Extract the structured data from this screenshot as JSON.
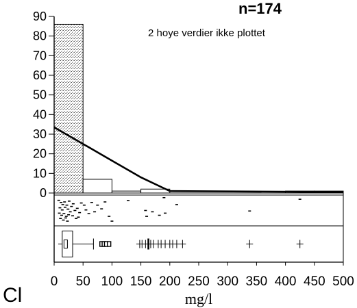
{
  "chart_data": {
    "type": "bar",
    "n_label": "n=174",
    "note": "2 hoye verdier ikke plottet",
    "element_label": "Cl",
    "xlabel": "mg/l",
    "xlim": [
      0,
      500
    ],
    "ylim": [
      0,
      90
    ],
    "x_ticks": [
      "0",
      "50",
      "100",
      "150",
      "200",
      "250",
      "300",
      "350",
      "400",
      "450",
      "500"
    ],
    "y_ticks": [
      "0",
      "10",
      "20",
      "30",
      "40",
      "50",
      "60",
      "70",
      "80",
      "90"
    ],
    "histogram": {
      "bin_width": 50,
      "bins": [
        {
          "from": 0,
          "to": 50,
          "count": 86
        },
        {
          "from": 50,
          "to": 100,
          "count": 7
        },
        {
          "from": 100,
          "to": 150,
          "count": 1
        },
        {
          "from": 150,
          "to": 200,
          "count": 2
        },
        {
          "from": 200,
          "to": 250,
          "count": 0
        },
        {
          "from": 250,
          "to": 300,
          "count": 0
        },
        {
          "from": 300,
          "to": 350,
          "count": 0
        },
        {
          "from": 350,
          "to": 400,
          "count": 0
        },
        {
          "from": 400,
          "to": 450,
          "count": 1
        },
        {
          "from": 450,
          "to": 500,
          "count": 1
        }
      ]
    },
    "density_line": {
      "x": [
        0,
        50,
        100,
        150,
        200,
        500
      ],
      "y": [
        33.5,
        25,
        16.5,
        8,
        1,
        0.5
      ]
    },
    "boxplot": {
      "whisker_low": 7,
      "q1": 14,
      "median": 20,
      "q3": 32,
      "whisker_high": 68,
      "outliers_circle": [
        82,
        86,
        90,
        95
      ],
      "outliers_cross": [
        148,
        152,
        158,
        163,
        167,
        172,
        180,
        185,
        192,
        200,
        205,
        212,
        222,
        338,
        425
      ]
    },
    "strip_points": [
      {
        "x": 8,
        "y": 0.12
      },
      {
        "x": 12,
        "y": 0.2
      },
      {
        "x": 15,
        "y": 0.28
      },
      {
        "x": 18,
        "y": 0.18
      },
      {
        "x": 22,
        "y": 0.3
      },
      {
        "x": 26,
        "y": 0.15
      },
      {
        "x": 10,
        "y": 0.4
      },
      {
        "x": 14,
        "y": 0.48
      },
      {
        "x": 19,
        "y": 0.38
      },
      {
        "x": 24,
        "y": 0.45
      },
      {
        "x": 28,
        "y": 0.55
      },
      {
        "x": 9,
        "y": 0.6
      },
      {
        "x": 13,
        "y": 0.68
      },
      {
        "x": 17,
        "y": 0.62
      },
      {
        "x": 21,
        "y": 0.72
      },
      {
        "x": 25,
        "y": 0.66
      },
      {
        "x": 11,
        "y": 0.8
      },
      {
        "x": 16,
        "y": 0.86
      },
      {
        "x": 20,
        "y": 0.78
      },
      {
        "x": 23,
        "y": 0.9
      },
      {
        "x": 30,
        "y": 0.35
      },
      {
        "x": 33,
        "y": 0.25
      },
      {
        "x": 36,
        "y": 0.5
      },
      {
        "x": 40,
        "y": 0.42
      },
      {
        "x": 44,
        "y": 0.58
      },
      {
        "x": 32,
        "y": 0.7
      },
      {
        "x": 38,
        "y": 0.8
      },
      {
        "x": 42,
        "y": 0.75
      },
      {
        "x": 47,
        "y": 0.22
      },
      {
        "x": 52,
        "y": 0.3
      },
      {
        "x": 55,
        "y": 0.48
      },
      {
        "x": 60,
        "y": 0.62
      },
      {
        "x": 65,
        "y": 0.2
      },
      {
        "x": 70,
        "y": 0.55
      },
      {
        "x": 75,
        "y": 0.3
      },
      {
        "x": 82,
        "y": 0.44
      },
      {
        "x": 88,
        "y": 0.18
      },
      {
        "x": 95,
        "y": 0.72
      },
      {
        "x": 100,
        "y": 0.9
      },
      {
        "x": 128,
        "y": 0.13
      },
      {
        "x": 158,
        "y": 0.5
      },
      {
        "x": 160,
        "y": 0.72
      },
      {
        "x": 170,
        "y": 0.55
      },
      {
        "x": 182,
        "y": 0.68
      },
      {
        "x": 192,
        "y": 0.6
      },
      {
        "x": 212,
        "y": 0.28
      },
      {
        "x": 190,
        "y": 0.02
      },
      {
        "x": 338,
        "y": 0.52
      },
      {
        "x": 425,
        "y": 0.08
      }
    ]
  }
}
